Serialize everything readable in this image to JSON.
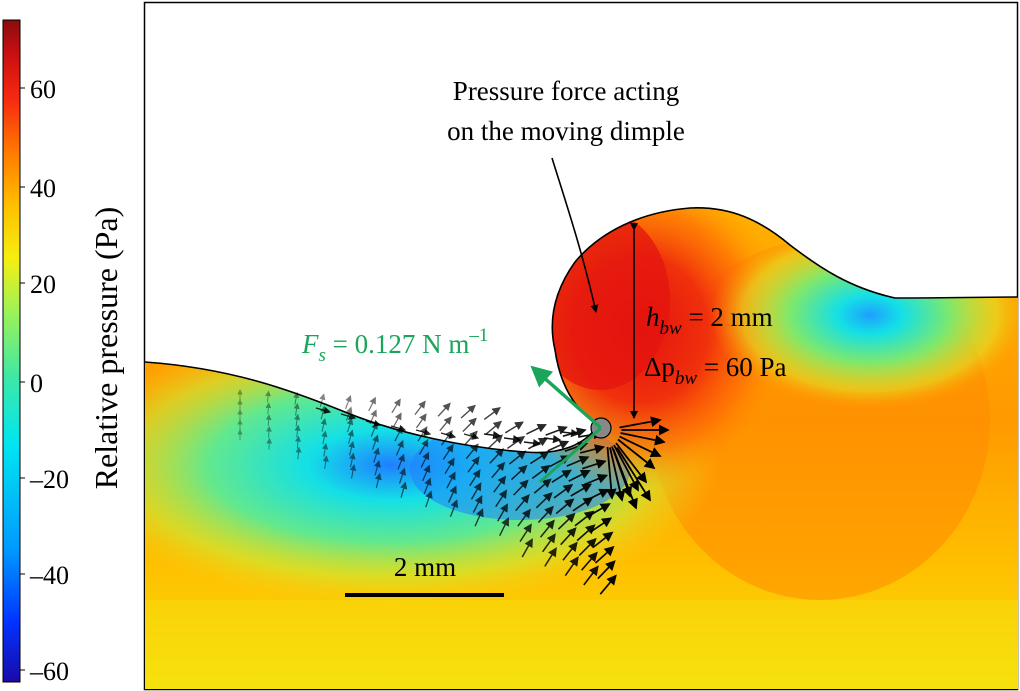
{
  "colorbar": {
    "title": "Relative pressure (Pa)",
    "ticks": [
      "60",
      "40",
      "20",
      "0",
      "–20",
      "–40",
      "–60"
    ],
    "min": -70,
    "max": 70,
    "colors": [
      "#1a0aa8",
      "#0033ff",
      "#0099ff",
      "#00e6f0",
      "#3de8a5",
      "#9ef257",
      "#f5ef10",
      "#ffbf00",
      "#ff7a00",
      "#f72a10",
      "#c80f12",
      "#8a0d0d"
    ]
  },
  "annotations": {
    "pressure_force_line1": "Pressure force acting",
    "pressure_force_line2": "on the moving dimple",
    "fs_symbol": "F",
    "fs_subscript": "s",
    "fs_value": " = 0.127 N m",
    "fs_exponent": "–1",
    "hbw_symbol": "h",
    "hbw_subscript": "bw",
    "hbw_value": " = 2 mm",
    "dp_symbol": "Δp",
    "dp_subscript": "bw",
    "dp_value": " = 60 Pa",
    "scalebar_label": "2 mm"
  },
  "field": {
    "hot_color": "#e8190f",
    "warm_color": "#ff7d05",
    "cool_color": "#14e0e6",
    "low_color": "#1f7fff",
    "ambient_color": "#f5d81a"
  },
  "arrow_color": "#000000",
  "force_color": "#1aa65a"
}
